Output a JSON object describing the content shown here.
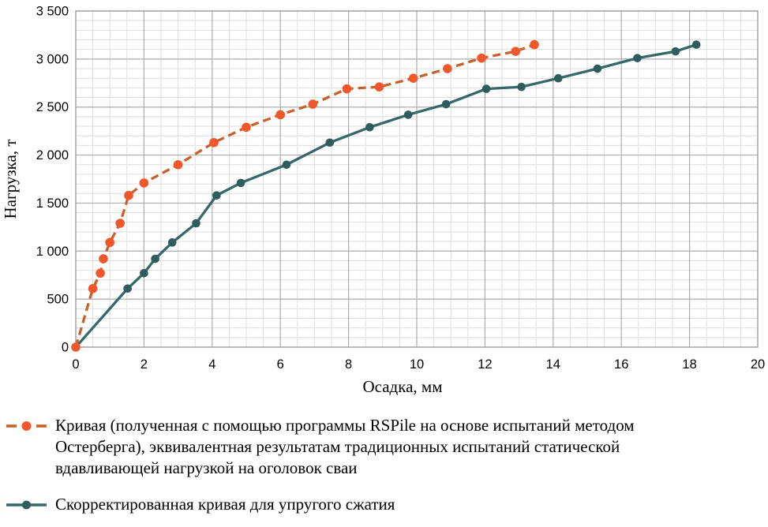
{
  "chart_data": {
    "type": "line",
    "title": "",
    "xlabel": "Осадка, мм",
    "ylabel": "Нагрузка, т",
    "xlim": [
      0,
      20
    ],
    "ylim": [
      0,
      3500
    ],
    "x_major_step": 2,
    "x_minor_step": 0.5,
    "y_major_step": 500,
    "y_minor_step": 100,
    "grid": "on",
    "legend_position": "bottom",
    "x_ticks": {
      "values": [
        0,
        2,
        4,
        6,
        8,
        10,
        12,
        14,
        16,
        18,
        20
      ],
      "labels": [
        "0",
        "2",
        "4",
        "6",
        "8",
        "10",
        "12",
        "14",
        "16",
        "18",
        "20"
      ]
    },
    "y_ticks": {
      "values": [
        0,
        500,
        1000,
        1500,
        2000,
        2500,
        3000,
        3500
      ],
      "labels": [
        "0",
        "500",
        "1 000",
        "1 500",
        "2 000",
        "2 500",
        "3 000",
        "3 500"
      ]
    },
    "colors": {
      "grid_minor": "#dedede",
      "grid_major": "#acacac",
      "plot_border": "#9e9e9e",
      "axis_text": "#000000"
    },
    "series": [
      {
        "name": "rspile-equivalent-curve",
        "dashed": true,
        "line_color": "#c8622b",
        "marker_color": "#f0582c",
        "points": [
          [
            0,
            0
          ],
          [
            0.5,
            610
          ],
          [
            0.72,
            770
          ],
          [
            0.81,
            920
          ],
          [
            1.0,
            1090
          ],
          [
            1.3,
            1290
          ],
          [
            1.55,
            1580
          ],
          [
            2.0,
            1710
          ],
          [
            3.0,
            1900
          ],
          [
            4.05,
            2130
          ],
          [
            5.0,
            2290
          ],
          [
            6.0,
            2420
          ],
          [
            6.95,
            2530
          ],
          [
            7.95,
            2690
          ],
          [
            8.9,
            2710
          ],
          [
            9.9,
            2800
          ],
          [
            10.9,
            2900
          ],
          [
            11.9,
            3010
          ],
          [
            12.9,
            3080
          ],
          [
            13.45,
            3150
          ]
        ]
      },
      {
        "name": "corrected-elastic-curve",
        "dashed": false,
        "line_color": "#356868",
        "marker_color": "#2e5d5c",
        "points": [
          [
            0,
            0
          ],
          [
            1.52,
            610
          ],
          [
            2.0,
            770
          ],
          [
            2.33,
            920
          ],
          [
            2.83,
            1090
          ],
          [
            3.53,
            1290
          ],
          [
            4.13,
            1580
          ],
          [
            4.84,
            1710
          ],
          [
            6.18,
            1900
          ],
          [
            7.45,
            2130
          ],
          [
            8.62,
            2290
          ],
          [
            9.75,
            2420
          ],
          [
            10.86,
            2530
          ],
          [
            12.04,
            2690
          ],
          [
            13.07,
            2710
          ],
          [
            14.15,
            2800
          ],
          [
            15.3,
            2900
          ],
          [
            16.47,
            3010
          ],
          [
            17.59,
            3080
          ],
          [
            18.2,
            3150
          ]
        ]
      }
    ]
  },
  "axis": {
    "y_title": "Нагрузка, т",
    "x_title": "Осадка, мм"
  },
  "legend": {
    "entries": [
      {
        "lines": {
          "0": "Кривая (полученная с помощью программы RSPile на основе испытаний методом",
          "1": "Остерберга), эквивалентная результатам традиционных испытаний статической",
          "2": "вдавливающей нагрузкой на оголовок сваи"
        }
      },
      {
        "lines": {
          "0": "Скорректированная кривая для упругого сжатия"
        }
      }
    ]
  }
}
